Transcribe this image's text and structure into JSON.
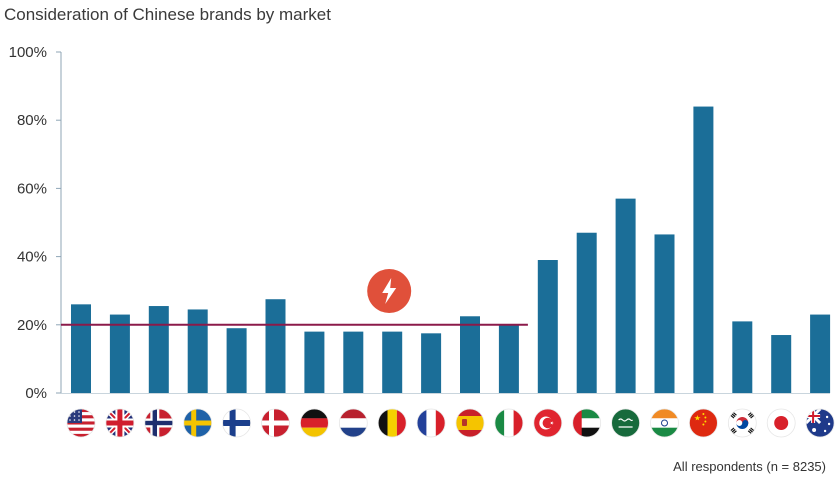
{
  "chart_data": {
    "type": "bar",
    "title": "Consideration of Chinese brands by market",
    "xlabel": "",
    "ylabel": "",
    "ylim": [
      0,
      100
    ],
    "yticks": [
      0,
      20,
      40,
      60,
      80,
      100
    ],
    "ytick_labels": [
      "0%",
      "20%",
      "40%",
      "60%",
      "80%",
      "100%"
    ],
    "categories": [
      "United States",
      "United Kingdom",
      "Norway",
      "Sweden",
      "Finland",
      "Denmark",
      "Germany",
      "Netherlands",
      "Belgium",
      "France",
      "Spain",
      "Italy",
      "Turkey",
      "United Arab Emirates",
      "Saudi Arabia",
      "India",
      "China",
      "South Korea",
      "Japan",
      "Australia"
    ],
    "category_icons": [
      "us-flag-icon",
      "uk-flag-icon",
      "norway-flag-icon",
      "sweden-flag-icon",
      "finland-flag-icon",
      "denmark-flag-icon",
      "germany-flag-icon",
      "netherlands-flag-icon",
      "belgium-flag-icon",
      "france-flag-icon",
      "spain-flag-icon",
      "italy-flag-icon",
      "turkey-flag-icon",
      "uae-flag-icon",
      "saudi-arabia-flag-icon",
      "india-flag-icon",
      "china-flag-icon",
      "south-korea-flag-icon",
      "japan-flag-icon",
      "australia-flag-icon"
    ],
    "values": [
      26,
      23,
      25.5,
      24.5,
      19,
      27.5,
      18,
      18,
      18,
      17.5,
      22.5,
      20,
      39,
      47,
      57,
      46.5,
      84,
      21,
      17,
      23
    ],
    "bar_color": "#1b6e98",
    "reference_line": {
      "value": 20,
      "x_range": [
        "United States",
        "Italy"
      ],
      "color": "#8b1a4a"
    },
    "annotation_icon": {
      "name": "lightning-icon",
      "color": "#e0503a",
      "near_category": "Belgium"
    },
    "footnote": "All respondents (n = 8235)",
    "grid": false,
    "legend": "none"
  }
}
